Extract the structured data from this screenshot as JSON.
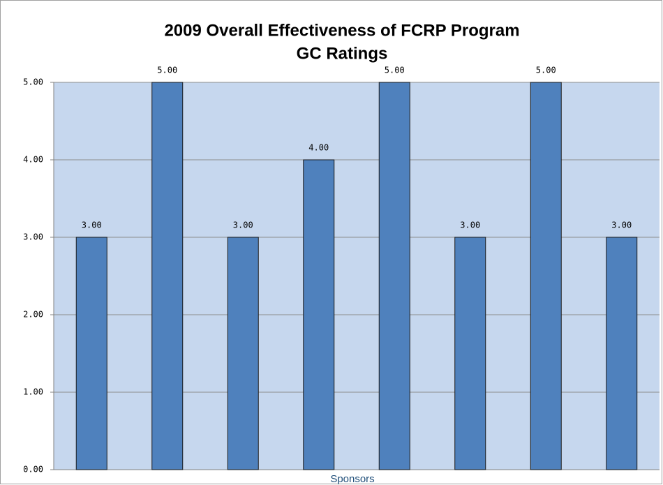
{
  "chart_data": {
    "type": "bar",
    "title": "2009 Overall Effectiveness of FCRP Program",
    "subtitle": "GC Ratings",
    "x_label": "Sponsors",
    "categories": [
      null,
      null,
      null,
      null,
      null,
      null,
      null,
      null
    ],
    "values": [
      3,
      5,
      3,
      4,
      5,
      3,
      5,
      3
    ],
    "value_labels": [
      "3.00",
      "5.00",
      "3.00",
      "4.00",
      "5.00",
      "3.00",
      "5.00",
      "3.00"
    ],
    "color": "#4f81bd",
    "ylim": [
      0,
      5
    ],
    "yticks": [
      {
        "value": 0,
        "label": "0.00"
      },
      {
        "value": 1,
        "label": "1.00"
      },
      {
        "value": 2,
        "label": "2.00"
      },
      {
        "value": 3,
        "label": "3.00"
      },
      {
        "value": 4,
        "label": "4.00"
      },
      {
        "value": 5,
        "label": "5.00"
      }
    ],
    "grid": true
  }
}
